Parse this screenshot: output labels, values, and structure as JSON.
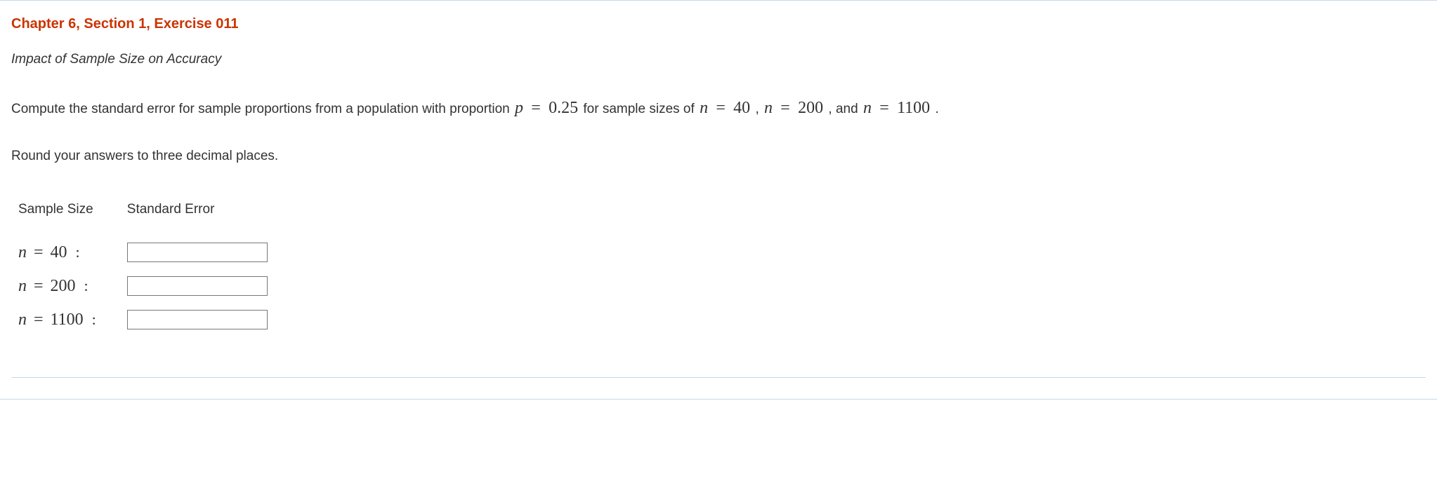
{
  "heading": "Chapter 6, Section 1, Exercise 011",
  "subtitle": "Impact of Sample Size on Accuracy",
  "instruction": {
    "pre": "Compute the standard error for sample proportions from a population with proportion ",
    "p_var": "p",
    "eq": "=",
    "p_val": "0.25",
    "mid1": " for sample sizes of ",
    "n_var": "n",
    "n1_val": "40",
    "comma1": " , ",
    "n2_val": "200",
    "comma_and": " , and ",
    "n3_val": "1100",
    "period": " ."
  },
  "rounding": "Round your answers to three decimal places.",
  "table": {
    "col1": "Sample Size",
    "col2": "Standard Error",
    "rows": [
      {
        "n_var": "n",
        "eq": "=",
        "val": "40",
        "colon": ":",
        "input": ""
      },
      {
        "n_var": "n",
        "eq": "=",
        "val": "200",
        "colon": ":",
        "input": ""
      },
      {
        "n_var": "n",
        "eq": "=",
        "val": "1100",
        "colon": ":",
        "input": ""
      }
    ]
  },
  "colors": {
    "heading": "#cc3300",
    "text": "#333333",
    "frame_border": "#c8d8e8",
    "input_border": "#777777",
    "background": "#ffffff"
  }
}
